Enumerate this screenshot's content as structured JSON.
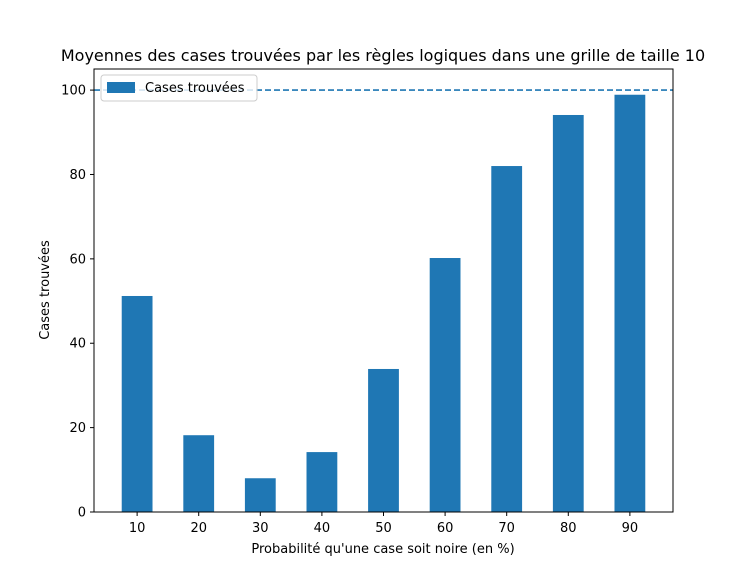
{
  "chart_data": {
    "type": "bar",
    "title": "Moyennes des cases trouvées par les règles logiques dans une grille de taille 10",
    "xlabel": "Probabilité qu'une case soit noire (en %)",
    "ylabel": "Cases trouvées",
    "categories": [
      "10",
      "20",
      "30",
      "40",
      "50",
      "60",
      "70",
      "80",
      "90"
    ],
    "series": [
      {
        "name": "Cases trouvées",
        "values": [
          51.2,
          18.2,
          8.0,
          14.2,
          33.9,
          60.2,
          82.0,
          94.1,
          98.9
        ],
        "color": "#1f77b4"
      }
    ],
    "yticks": [
      "0",
      "20",
      "40",
      "60",
      "80",
      "100"
    ],
    "ylim": [
      0,
      105
    ],
    "reference_line": {
      "y": 100,
      "style": "dashed",
      "color": "#1f77b4"
    },
    "legend": {
      "position": "top-left"
    },
    "grid": false
  }
}
